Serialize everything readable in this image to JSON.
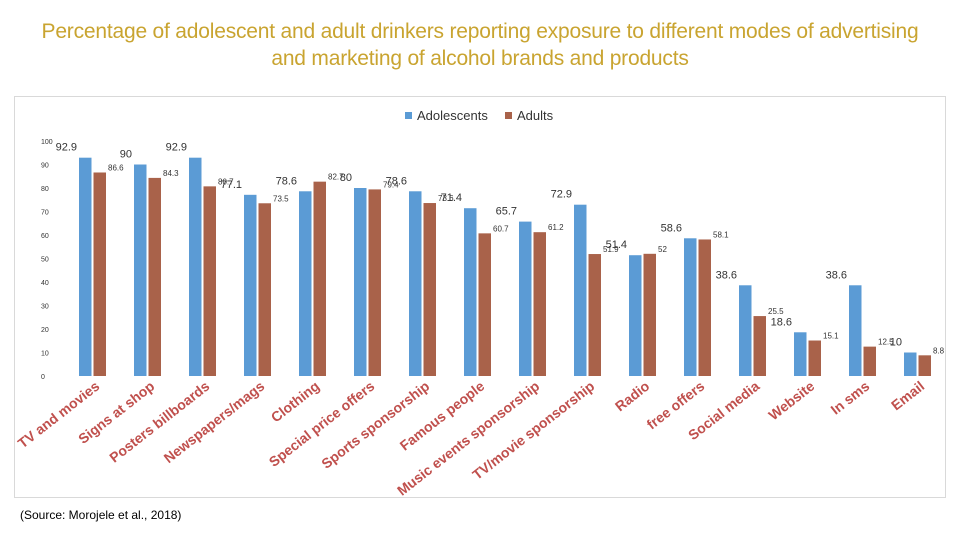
{
  "title": "Percentage of adolescent and adult drinkers reporting exposure to different modes of advertising and marketing of alcohol brands and products",
  "source": "(Source: Morojele et al., 2018)",
  "colors": {
    "title": "#c9a430",
    "adolescents": "#5b9bd5",
    "adults": "#a9624a"
  },
  "chart_data": {
    "type": "bar",
    "categories": [
      "TV and movies",
      "Signs at shop",
      "Posters billboards",
      "Newspapers/mags",
      "Clothing",
      "Special price offers",
      "Sports sponsorship",
      "Famous people",
      "Music events sponsorship",
      "TV/movie sponsorship",
      "Radio",
      "free offers",
      "Social media",
      "Website",
      "In sms",
      "Email"
    ],
    "series": [
      {
        "name": "Adolescents",
        "values": [
          92.9,
          90,
          92.9,
          77.1,
          78.6,
          80,
          78.6,
          71.4,
          65.7,
          72.9,
          51.4,
          58.6,
          38.6,
          18.6,
          38.6,
          10
        ]
      },
      {
        "name": "Adults",
        "values": [
          86.6,
          84.3,
          80.7,
          73.5,
          82.7,
          79.4,
          73.6,
          60.7,
          61.2,
          51.9,
          52,
          58.1,
          25.5,
          15.1,
          12.5,
          8.8
        ]
      }
    ],
    "series_labels": [
      [
        "92.9",
        "90",
        "92.9",
        "77.1",
        "78.6",
        "80",
        "78.6",
        "71.4",
        "65.7",
        "72.9",
        "51.4",
        "58.6",
        "38.6",
        "18.6",
        "38.6",
        "10"
      ],
      [
        "86.6",
        "84.3",
        "80.7",
        "73.5",
        "82.7",
        "79.4",
        "73.6",
        "60.7",
        "61.2",
        "51.9",
        "52",
        "58.1",
        "25.5",
        "15.1",
        "12.5",
        "8.8"
      ]
    ],
    "yticks": [
      "0",
      "10",
      "20",
      "30",
      "40",
      "50",
      "60",
      "70",
      "80",
      "90",
      "100"
    ],
    "ylim": [
      0,
      100
    ],
    "grid": false,
    "legend": "top-center"
  }
}
